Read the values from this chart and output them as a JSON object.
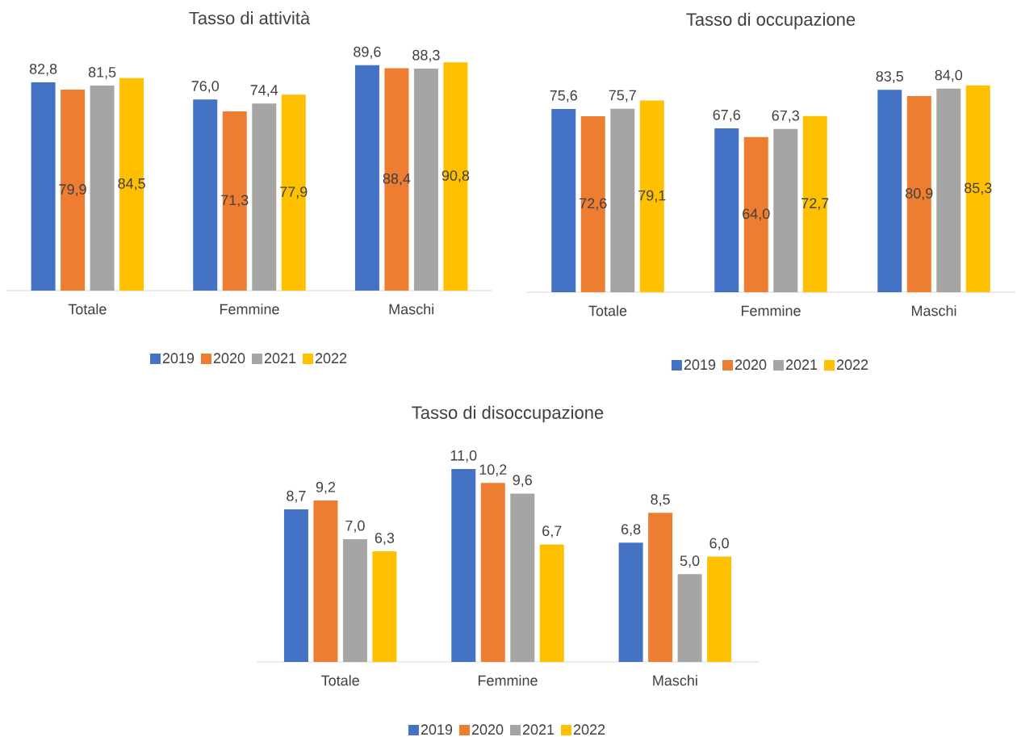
{
  "chart_data": [
    {
      "type": "bar",
      "title": "Tasso di attività",
      "categories": [
        "Totale",
        "Femmine",
        "Maschi"
      ],
      "legend": "bottom",
      "series": [
        {
          "name": "2019",
          "color": "#4472c4",
          "values": [
            82.8,
            76.0,
            89.6
          ],
          "value_labels": [
            "82,8",
            "76,0",
            "89,6"
          ]
        },
        {
          "name": "2020",
          "color": "#ed7d31",
          "values": [
            79.9,
            71.3,
            88.4
          ],
          "value_labels": [
            "79,9",
            "71,3",
            "88,4"
          ]
        },
        {
          "name": "2021",
          "color": "#a5a5a5",
          "values": [
            81.5,
            74.4,
            88.3
          ],
          "value_labels": [
            "81,5",
            "74,4",
            "88,3"
          ]
        },
        {
          "name": "2022",
          "color": "#ffc000",
          "values": [
            84.5,
            77.9,
            90.8
          ],
          "value_labels": [
            "84,5",
            "77,9",
            "90,8"
          ]
        }
      ]
    },
    {
      "type": "bar",
      "title": "Tasso di occupazione",
      "categories": [
        "Totale",
        "Femmine",
        "Maschi"
      ],
      "legend": "bottom",
      "series": [
        {
          "name": "2019",
          "color": "#4472c4",
          "values": [
            75.6,
            67.6,
            83.5
          ],
          "value_labels": [
            "75,6",
            "67,6",
            "83,5"
          ]
        },
        {
          "name": "2020",
          "color": "#ed7d31",
          "values": [
            72.6,
            64.0,
            80.9
          ],
          "value_labels": [
            "72,6",
            "64,0",
            "80,9"
          ]
        },
        {
          "name": "2021",
          "color": "#a5a5a5",
          "values": [
            75.7,
            67.3,
            84.0
          ],
          "value_labels": [
            "75,7",
            "67,3",
            "84,0"
          ]
        },
        {
          "name": "2022",
          "color": "#ffc000",
          "values": [
            79.1,
            72.7,
            85.3
          ],
          "value_labels": [
            "79,1",
            "72,7",
            "85,3"
          ]
        }
      ]
    },
    {
      "type": "bar",
      "title": "Tasso di disoccupazione",
      "categories": [
        "Totale",
        "Femmine",
        "Maschi"
      ],
      "legend": "bottom",
      "series": [
        {
          "name": "2019",
          "color": "#4472c4",
          "values": [
            8.7,
            11.0,
            6.8
          ],
          "value_labels": [
            "8,7",
            "11,0",
            "6,8"
          ]
        },
        {
          "name": "2020",
          "color": "#ed7d31",
          "values": [
            9.2,
            10.2,
            8.5
          ],
          "value_labels": [
            "9,2",
            "10,2",
            "8,5"
          ]
        },
        {
          "name": "2021",
          "color": "#a5a5a5",
          "values": [
            7.0,
            9.6,
            5.0
          ],
          "value_labels": [
            "7,0",
            "9,6",
            "5,0"
          ]
        },
        {
          "name": "2022",
          "color": "#ffc000",
          "values": [
            6.3,
            6.7,
            6.0
          ],
          "value_labels": [
            "6,3",
            "6,7",
            "6,0"
          ]
        }
      ]
    }
  ]
}
